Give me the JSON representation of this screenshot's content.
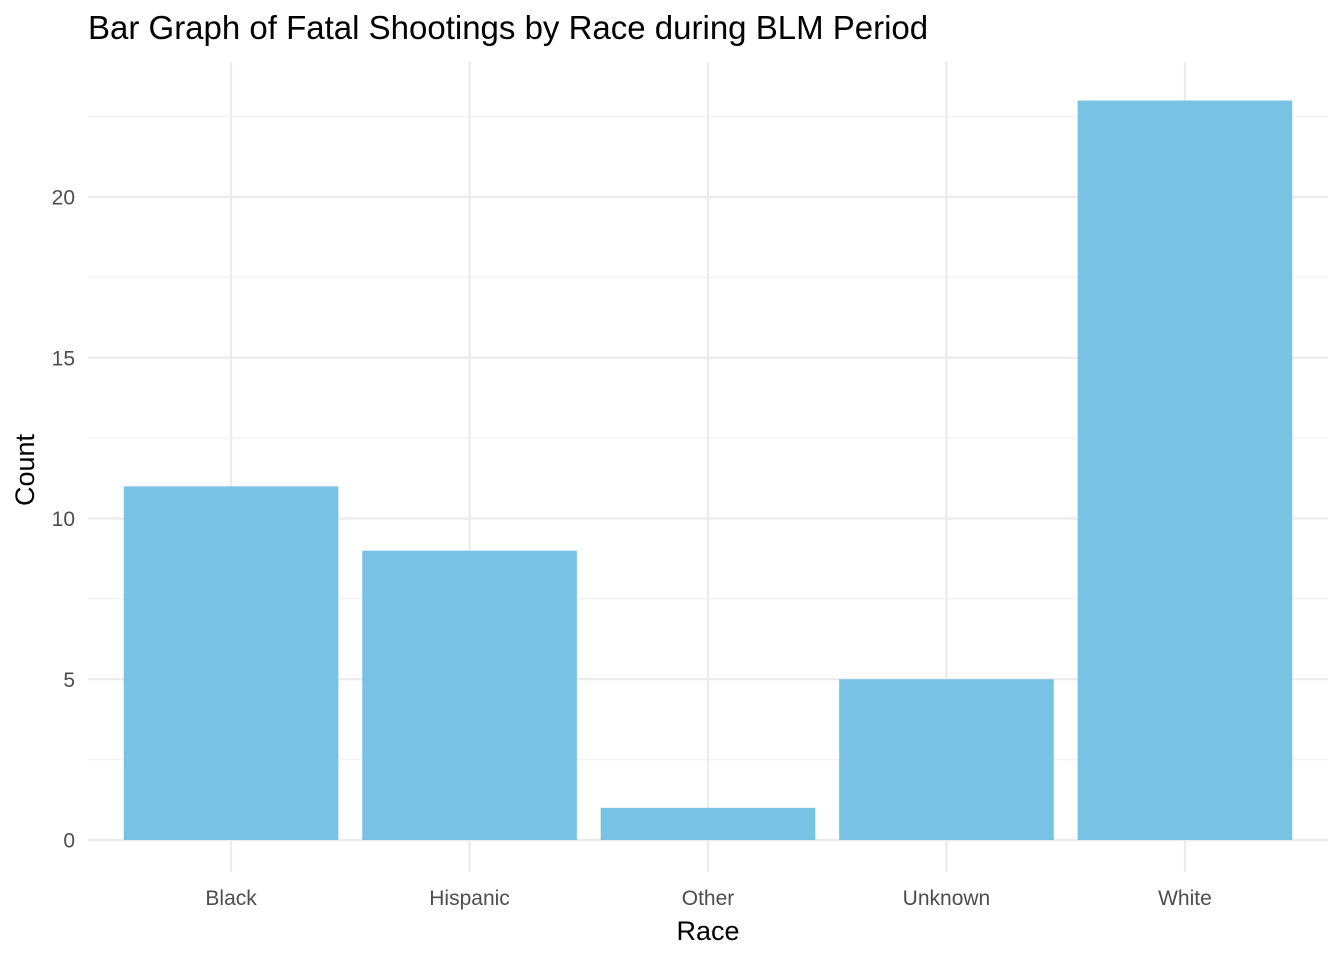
{
  "chart_data": {
    "type": "bar",
    "title": "Bar Graph of Fatal Shootings by Race during BLM Period",
    "xlabel": "Race",
    "ylabel": "Count",
    "categories": [
      "Black",
      "Hispanic",
      "Other",
      "Unknown",
      "White"
    ],
    "values": [
      11,
      9,
      1,
      5,
      23
    ],
    "ylim": [
      0,
      24.2
    ],
    "yticks": [
      0,
      5,
      10,
      15,
      20
    ],
    "grid": true,
    "legend": "none",
    "colors": {
      "bar": "#78C2E4",
      "grid_major": "#EBEBEB",
      "grid_minor": "#F2F2F2",
      "tick_text": "#4D4D4D",
      "background": "#FFFFFF"
    }
  }
}
